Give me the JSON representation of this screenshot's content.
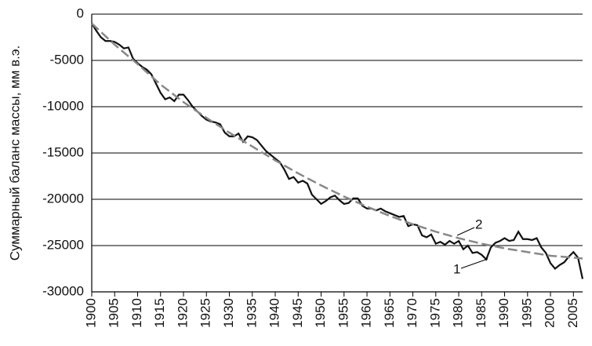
{
  "chart_data": {
    "type": "line",
    "y_label": "Суммарный баланс массы, мм в.э.",
    "xlim": [
      1900,
      2007
    ],
    "ylim": [
      -30000,
      0
    ],
    "xticks": [
      1900,
      1905,
      1910,
      1915,
      1920,
      1925,
      1930,
      1935,
      1940,
      1945,
      1950,
      1955,
      1960,
      1965,
      1970,
      1975,
      1980,
      1985,
      1990,
      1995,
      2000,
      2005
    ],
    "yticks": [
      0,
      -5000,
      -10000,
      -15000,
      -20000,
      -25000,
      -30000
    ],
    "grid": true,
    "annotations": [
      "1",
      "2"
    ],
    "series": [
      {
        "color": "#111111",
        "dash": "solid",
        "x": [
          1900,
          1901,
          1902,
          1903,
          1904,
          1905,
          1906,
          1907,
          1908,
          1909,
          1910,
          1911,
          1912,
          1913,
          1914,
          1915,
          1916,
          1917,
          1918,
          1919,
          1920,
          1921,
          1922,
          1923,
          1924,
          1925,
          1926,
          1927,
          1928,
          1929,
          1930,
          1931,
          1932,
          1933,
          1934,
          1935,
          1936,
          1937,
          1938,
          1939,
          1940,
          1941,
          1942,
          1943,
          1944,
          1945,
          1946,
          1947,
          1948,
          1949,
          1950,
          1951,
          1952,
          1953,
          1954,
          1955,
          1956,
          1957,
          1958,
          1959,
          1960,
          1961,
          1962,
          1963,
          1964,
          1965,
          1966,
          1967,
          1968,
          1969,
          1970,
          1971,
          1972,
          1973,
          1974,
          1975,
          1976,
          1977,
          1978,
          1979,
          1980,
          1981,
          1982,
          1983,
          1984,
          1985,
          1986,
          1987,
          1988,
          1989,
          1990,
          1991,
          1992,
          1993,
          1994,
          1995,
          1996,
          1997,
          1998,
          1999,
          2000,
          2001,
          2002,
          2003,
          2004,
          2005,
          2006,
          2007
        ],
        "values": [
          -1000,
          -1800,
          -2500,
          -2900,
          -2900,
          -3000,
          -3300,
          -3700,
          -3600,
          -4800,
          -5300,
          -5700,
          -6000,
          -6500,
          -7500,
          -8500,
          -9200,
          -9000,
          -9400,
          -8700,
          -8700,
          -9300,
          -10000,
          -10500,
          -11000,
          -11400,
          -11600,
          -11700,
          -11900,
          -12800,
          -13200,
          -13200,
          -12900,
          -13800,
          -13200,
          -13300,
          -13600,
          -14200,
          -14800,
          -15200,
          -15600,
          -16000,
          -16800,
          -17800,
          -17600,
          -18200,
          -18000,
          -18300,
          -19500,
          -20000,
          -20500,
          -20200,
          -19800,
          -19600,
          -20100,
          -20500,
          -20400,
          -19900,
          -19900,
          -20700,
          -21000,
          -21000,
          -21200,
          -21000,
          -21300,
          -21500,
          -21700,
          -21900,
          -21800,
          -22900,
          -22700,
          -22800,
          -23900,
          -24100,
          -23800,
          -24800,
          -24600,
          -24900,
          -24500,
          -24800,
          -24500,
          -25400,
          -25000,
          -25800,
          -25700,
          -26000,
          -26500,
          -25200,
          -24700,
          -24500,
          -24200,
          -24500,
          -24400,
          -23500,
          -24300,
          -24300,
          -24400,
          -24200,
          -25200,
          -25800,
          -26900,
          -27500,
          -27100,
          -26800,
          -26200,
          -25700,
          -26300,
          -28600
        ]
      },
      {
        "color": "#888888",
        "dash": "dashed",
        "x": [
          1900,
          1905,
          1910,
          1915,
          1920,
          1925,
          1930,
          1935,
          1940,
          1945,
          1950,
          1955,
          1960,
          1965,
          1970,
          1975,
          1980,
          1985,
          1990,
          1995,
          2000,
          2005,
          2007
        ],
        "values": [
          -1000,
          -3300,
          -5400,
          -7600,
          -9500,
          -11200,
          -12800,
          -14300,
          -15800,
          -17200,
          -18500,
          -19700,
          -20800,
          -21800,
          -22700,
          -23500,
          -24200,
          -24800,
          -25300,
          -25700,
          -26100,
          -26300,
          -26400
        ]
      }
    ]
  }
}
